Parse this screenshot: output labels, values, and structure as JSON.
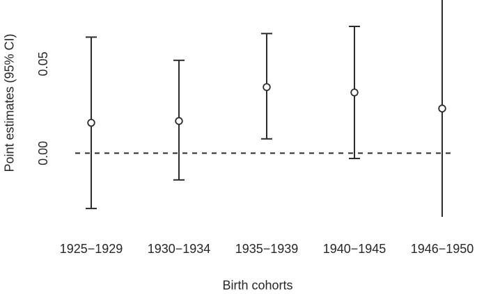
{
  "chart_data": {
    "type": "scatter",
    "subtype": "point-estimates-with-error-bars",
    "title": "",
    "xlabel": "Birth cohorts",
    "ylabel": "Point estimates (95% CI)",
    "categories": [
      "1925−1929",
      "1930−1934",
      "1935−1939",
      "1940−1945",
      "1946−1950"
    ],
    "series": [
      {
        "name": "Point estimate with 95% CI",
        "points": [
          {
            "cohort": "1925−1929",
            "estimate": 0.017,
            "ci_low": -0.031,
            "ci_high": 0.065,
            "ci_low_clipped": false,
            "ci_high_clipped": false
          },
          {
            "cohort": "1930−1934",
            "estimate": 0.018,
            "ci_low": -0.015,
            "ci_high": 0.052,
            "ci_low_clipped": false,
            "ci_high_clipped": false
          },
          {
            "cohort": "1935−1939",
            "estimate": 0.037,
            "ci_low": 0.008,
            "ci_high": 0.067,
            "ci_low_clipped": false,
            "ci_high_clipped": false
          },
          {
            "cohort": "1940−1945",
            "estimate": 0.034,
            "ci_low": -0.003,
            "ci_high": 0.071,
            "ci_low_clipped": false,
            "ci_high_clipped": false
          },
          {
            "cohort": "1946−1950",
            "estimate": 0.025,
            "ci_low": -0.05,
            "ci_high": 0.12,
            "ci_low_clipped": true,
            "ci_high_clipped": true
          }
        ]
      }
    ],
    "yticks": [
      {
        "value": 0.05,
        "label": "0.05"
      },
      {
        "value": 0.0,
        "label": "0.00"
      }
    ],
    "ylim": [
      -0.0357,
      0.0858
    ],
    "reference_line": {
      "value": 0.0,
      "style": "dashed"
    },
    "grid": false,
    "legend": false,
    "marker": "open-circle",
    "colors": {
      "line": "#2b2b2b",
      "text": "#262626",
      "background": "#ffffff",
      "marker_fill": "#ffffff"
    }
  }
}
